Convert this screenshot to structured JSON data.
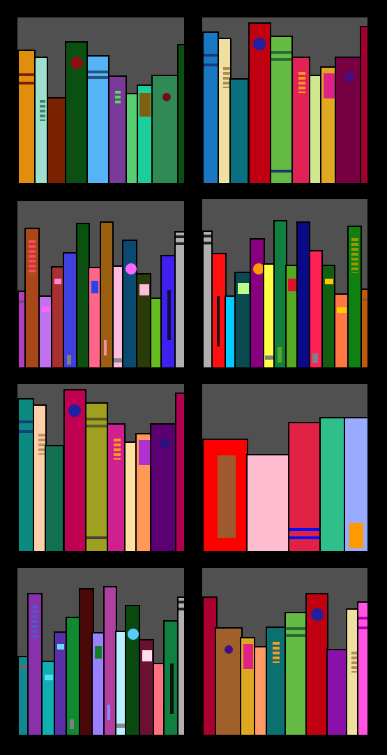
{
  "title": "",
  "icons": [
    "book-spine-icon",
    "spine-emblem-icon",
    "spine-stripe-icon",
    "spine-glyph-icon"
  ],
  "colors": {
    "background": "#000000",
    "shelf_wall": "#505050"
  },
  "panels": [
    {
      "name": "shelf-1",
      "books": [
        {
          "c": "#e08e0b"
        },
        {
          "c": "#9ee0cf"
        },
        {
          "c": "#7a2200"
        },
        {
          "c": "#0a5010"
        },
        {
          "c": "#55b4f5"
        },
        {
          "c": "#7a3a9a"
        },
        {
          "c": "#55cf70"
        },
        {
          "c": "#1ccf9a"
        },
        {
          "c": "#2f8a55"
        },
        {
          "c": "#0a5010"
        }
      ]
    },
    {
      "name": "shelf-2",
      "books": [
        {
          "c": "#1a78c2"
        },
        {
          "c": "#efdfa0"
        },
        {
          "c": "#0a7080"
        },
        {
          "c": "#c00010"
        },
        {
          "c": "#66bb44"
        },
        {
          "c": "#e02255"
        },
        {
          "c": "#cfe890"
        },
        {
          "c": "#e0a820"
        },
        {
          "c": "#770045"
        },
        {
          "c": "#a00030"
        }
      ]
    },
    {
      "name": "shelf-3",
      "books": [
        {
          "c": "#b040c0"
        },
        {
          "c": "#a84818"
        },
        {
          "c": "#c070f0"
        },
        {
          "c": "#a83030"
        },
        {
          "c": "#4040e0"
        },
        {
          "c": "#0a5010"
        },
        {
          "c": "#ff6688"
        },
        {
          "c": "#9a5e10"
        },
        {
          "c": "#ffbbdd"
        },
        {
          "c": "#0a4a70"
        },
        {
          "c": "#2a3a0a"
        },
        {
          "c": "#66bb20"
        },
        {
          "c": "#4020f0"
        },
        {
          "c": "#b0b0b0"
        }
      ]
    },
    {
      "name": "shelf-4",
      "books": [
        {
          "c": "#b0b0b0"
        },
        {
          "c": "#ff1010"
        },
        {
          "c": "#00ccff"
        },
        {
          "c": "#0a4a50"
        },
        {
          "c": "#880080"
        },
        {
          "c": "#ffff44"
        },
        {
          "c": "#108040"
        },
        {
          "c": "#55aa20"
        },
        {
          "c": "#0a0a88"
        },
        {
          "c": "#ff2255"
        },
        {
          "c": "#106010"
        },
        {
          "c": "#ff7744"
        },
        {
          "c": "#108010"
        },
        {
          "c": "#c05a10"
        }
      ]
    },
    {
      "name": "shelf-5",
      "books": [
        {
          "c": "#0a8a80"
        },
        {
          "c": "#ffcfa8"
        },
        {
          "c": "#107050"
        },
        {
          "c": "#c00050"
        },
        {
          "c": "#a0a020"
        },
        {
          "c": "#d02090"
        },
        {
          "c": "#ffe0a0"
        },
        {
          "c": "#ff9955"
        },
        {
          "c": "#5a0070"
        },
        {
          "c": "#b00050"
        }
      ]
    },
    {
      "name": "shelf-6",
      "books": [
        {
          "c": "#ff0000"
        },
        {
          "c": "#ffbbd0"
        },
        {
          "c": "#e02244"
        },
        {
          "c": "#2ebf8a"
        },
        {
          "c": "#99aaff"
        }
      ]
    },
    {
      "name": "shelf-7",
      "books": [
        {
          "c": "#108a90"
        },
        {
          "c": "#8a30aa"
        },
        {
          "c": "#10b0b0"
        },
        {
          "c": "#5a30aa"
        },
        {
          "c": "#108a30"
        },
        {
          "c": "#4a0808"
        },
        {
          "c": "#9a80ff"
        },
        {
          "c": "#b040a0"
        },
        {
          "c": "#b8f0ff"
        },
        {
          "c": "#0a4a10"
        },
        {
          "c": "#6a1030"
        },
        {
          "c": "#ff7080"
        },
        {
          "c": "#108040"
        },
        {
          "c": "#b0b0b0"
        }
      ]
    },
    {
      "name": "shelf-8",
      "books": [
        {
          "c": "#aa0030"
        },
        {
          "c": "#a0602a"
        },
        {
          "c": "#e0a820"
        },
        {
          "c": "#ff9a66"
        },
        {
          "c": "#0a7070"
        },
        {
          "c": "#66bb44"
        },
        {
          "c": "#c00010"
        },
        {
          "c": "#8a10aa"
        },
        {
          "c": "#efdfa0"
        },
        {
          "c": "#ff55e0"
        }
      ]
    }
  ]
}
